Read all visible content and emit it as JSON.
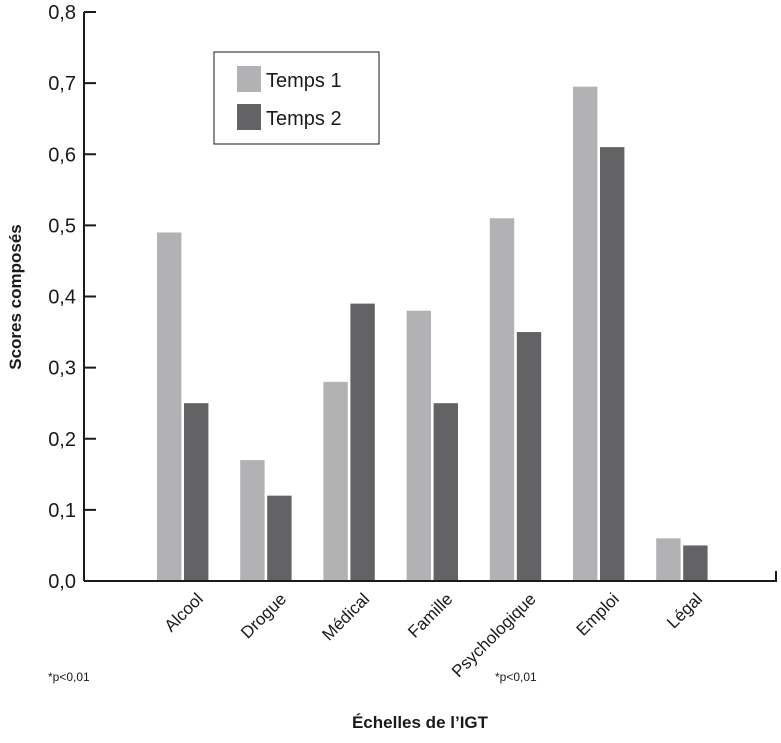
{
  "chart_data": {
    "type": "bar",
    "xlabel": "Échelles de l’IGT",
    "ylabel": "Scores composés",
    "ylim": [
      0,
      0.8
    ],
    "yticks": [
      "0,0",
      "0,1",
      "0,2",
      "0,3",
      "0,4",
      "0,5",
      "0,6",
      "0,7",
      "0,8"
    ],
    "categories": [
      "Alcool",
      "Drogue",
      "Médical",
      "Famille",
      "Psychologique",
      "Emploi",
      "Légal"
    ],
    "series": [
      {
        "name": "Temps 1",
        "color": "#b2b2b4",
        "values": [
          0.49,
          0.17,
          0.28,
          0.38,
          0.51,
          0.695,
          0.06
        ]
      },
      {
        "name": "Temps 2",
        "color": "#636365",
        "values": [
          0.25,
          0.12,
          0.39,
          0.25,
          0.35,
          0.61,
          0.05
        ]
      }
    ],
    "legend": "top-left, boxed",
    "grid": false,
    "annotations": [
      "*p<0,01",
      "*p<0,01"
    ]
  }
}
